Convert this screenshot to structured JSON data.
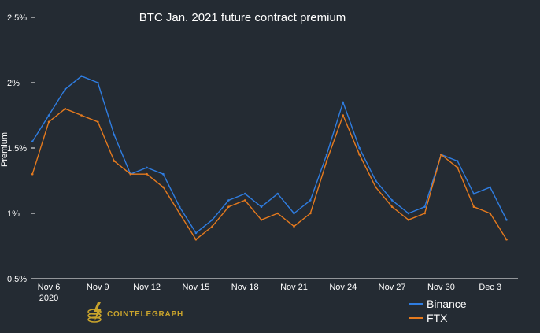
{
  "chart_data": {
    "type": "line",
    "title": "BTC Jan. 2021 future contract premium",
    "xlabel": "",
    "ylabel": "Premium",
    "ylim": [
      0.5,
      2.5
    ],
    "yticks": [
      "2.5%",
      "2%",
      "1.5%",
      "1%",
      "0.5%"
    ],
    "ytick_values": [
      2.5,
      2.0,
      1.5,
      1.0,
      0.5
    ],
    "xticks": [
      "Nov 6",
      "Nov 9",
      "Nov 12",
      "Nov 15",
      "Nov 18",
      "Nov 21",
      "Nov 24",
      "Nov 27",
      "Nov 30",
      "Dec 3"
    ],
    "xtick_year": "2020",
    "x": [
      "Nov 5",
      "Nov 6",
      "Nov 7",
      "Nov 8",
      "Nov 9",
      "Nov 10",
      "Nov 11",
      "Nov 12",
      "Nov 13",
      "Nov 14",
      "Nov 15",
      "Nov 16",
      "Nov 17",
      "Nov 18",
      "Nov 19",
      "Nov 20",
      "Nov 21",
      "Nov 22",
      "Nov 23",
      "Nov 24",
      "Nov 25",
      "Nov 26",
      "Nov 27",
      "Nov 28",
      "Nov 29",
      "Nov 30",
      "Dec 1",
      "Dec 2",
      "Dec 3",
      "Dec 4"
    ],
    "series": [
      {
        "name": "Binance",
        "color": "#2f7de1",
        "values": [
          1.55,
          1.75,
          1.95,
          2.05,
          2.0,
          1.6,
          1.3,
          1.35,
          1.3,
          1.05,
          0.85,
          0.95,
          1.1,
          1.15,
          1.05,
          1.15,
          1.0,
          1.1,
          1.45,
          1.85,
          1.5,
          1.25,
          1.1,
          1.0,
          1.05,
          1.45,
          1.4,
          1.15,
          1.2,
          0.95
        ]
      },
      {
        "name": "FTX",
        "color": "#e57a1e",
        "values": [
          1.3,
          1.7,
          1.8,
          1.75,
          1.7,
          1.4,
          1.3,
          1.3,
          1.2,
          1.0,
          0.8,
          0.9,
          1.05,
          1.1,
          0.95,
          1.0,
          0.9,
          1.0,
          1.4,
          1.75,
          1.45,
          1.2,
          1.05,
          0.95,
          1.0,
          1.45,
          1.35,
          1.05,
          1.0,
          0.8
        ]
      }
    ],
    "legend_position": "bottom-right"
  },
  "branding": {
    "logo_text": "COINTELEGRAPH"
  },
  "colors": {
    "background": "#242b33",
    "text": "#ffffff",
    "axis": "#ffffff",
    "logo": "#c8a32c"
  }
}
